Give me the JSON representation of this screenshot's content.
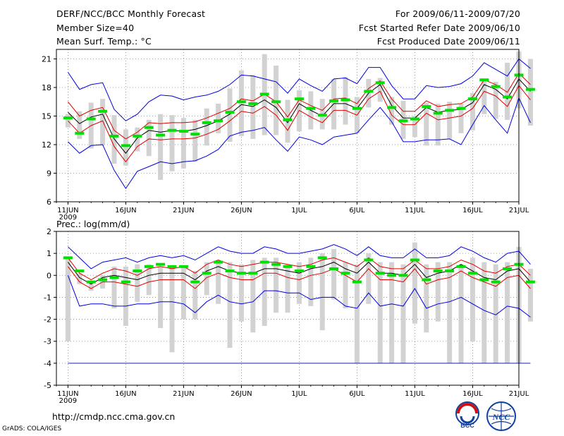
{
  "header": {
    "title": "DERF/NCC/BCC Monthly Forecast",
    "member": "Member Size=40",
    "variable": "Mean Surf. Temp.: °C",
    "period": "For 2009/06/11-2009/07/20",
    "started": "Fcst Started Refer Date 2009/06/10",
    "produced": "Fcst Produced Date 2009/06/11"
  },
  "footer": {
    "url": "http://cmdp.ncc.cma.gov.cn",
    "credit": "GrADS: COLA/IGES"
  },
  "logos": {
    "bcc": "BCC",
    "ncc": "NCC"
  },
  "colors": {
    "bar": "#d2d2d2",
    "median": "#00e000",
    "mean": "#000000",
    "inner": "#e00000",
    "outer": "#0000e0",
    "grid": "#888888"
  },
  "chart_data": [
    {
      "type": "line",
      "panel": "temperature",
      "ylabel": "",
      "ylim": [
        6,
        22
      ],
      "yticks": [
        6,
        9,
        12,
        15,
        18,
        21
      ],
      "xlim": [
        0,
        40
      ],
      "xticks": [
        {
          "x": 1,
          "label": "11JUN",
          "sub": "2009"
        },
        {
          "x": 6,
          "label": "16JUN"
        },
        {
          "x": 11,
          "label": "21JUN"
        },
        {
          "x": 16,
          "label": "26JUN"
        },
        {
          "x": 21,
          "label": "1JUL"
        },
        {
          "x": 26,
          "label": "6JUL"
        },
        {
          "x": 31,
          "label": "11JUL"
        },
        {
          "x": 36,
          "label": "16JUL"
        },
        {
          "x": 40,
          "label": "21JUL"
        }
      ],
      "series": [
        {
          "name": "outer_upper",
          "values": [
            19.6,
            17.8,
            18.3,
            18.5,
            15.7,
            14.5,
            15.2,
            16.5,
            17.2,
            17.1,
            16.7,
            17.0,
            17.2,
            17.6,
            18.3,
            19.3,
            19.2,
            18.9,
            18.6,
            17.4,
            18.9,
            18.2,
            17.6,
            18.9,
            19.0,
            18.4,
            20.1,
            20.1,
            18.2,
            16.8,
            16.8,
            18.2,
            18.0,
            18.1,
            18.4,
            19.2,
            20.6,
            19.9,
            19.2,
            21.0,
            20.0
          ]
        },
        {
          "name": "inner_upper",
          "values": [
            16.5,
            15.0,
            15.6,
            15.9,
            13.5,
            12.6,
            13.3,
            14.3,
            14.2,
            14.3,
            14.3,
            14.4,
            14.8,
            15.3,
            15.8,
            16.8,
            16.6,
            17.3,
            16.5,
            14.9,
            16.7,
            16.1,
            15.6,
            16.8,
            16.9,
            16.3,
            17.9,
            18.7,
            16.8,
            15.5,
            15.5,
            16.6,
            16.0,
            16.2,
            16.3,
            17.0,
            18.8,
            18.3,
            17.5,
            19.5,
            18.3
          ]
        },
        {
          "name": "mean",
          "values": [
            15.4,
            14.2,
            14.9,
            15.2,
            12.6,
            11.1,
            12.7,
            13.5,
            13.3,
            13.5,
            13.4,
            13.6,
            14.0,
            14.5,
            15.2,
            16.2,
            16.0,
            16.7,
            15.9,
            14.3,
            16.3,
            15.6,
            15.0,
            16.3,
            16.3,
            15.8,
            17.4,
            18.3,
            16.1,
            14.8,
            14.8,
            15.9,
            15.4,
            15.6,
            15.7,
            16.4,
            18.3,
            17.8,
            16.8,
            18.9,
            17.6
          ]
        },
        {
          "name": "inner_lower",
          "values": [
            14.5,
            13.2,
            14.0,
            14.5,
            11.8,
            10.2,
            11.8,
            12.6,
            12.5,
            12.6,
            12.6,
            12.7,
            13.1,
            13.6,
            14.5,
            15.5,
            15.3,
            16.0,
            15.1,
            13.5,
            15.6,
            14.9,
            14.3,
            15.6,
            15.6,
            15.1,
            16.8,
            17.6,
            15.1,
            14.1,
            14.1,
            15.3,
            14.6,
            14.8,
            15.0,
            15.8,
            17.6,
            17.1,
            16.0,
            18.2,
            16.7
          ]
        },
        {
          "name": "outer_lower",
          "values": [
            12.3,
            11.1,
            11.9,
            12.0,
            9.3,
            7.4,
            9.2,
            9.7,
            10.2,
            10.0,
            10.2,
            10.3,
            10.8,
            11.5,
            12.9,
            13.3,
            13.5,
            13.8,
            12.5,
            11.3,
            12.8,
            12.5,
            12.0,
            12.8,
            13.0,
            13.2,
            14.6,
            15.9,
            14.4,
            12.3,
            12.3,
            12.5,
            12.5,
            12.6,
            12.0,
            14.1,
            16.1,
            14.6,
            13.2,
            16.9,
            14.3
          ]
        }
      ],
      "boxes": {
        "low": [
          13.8,
          12.6,
          11.6,
          11.9,
          10.0,
          9.8,
          11.3,
          10.8,
          8.3,
          9.2,
          9.5,
          10.2,
          11.9,
          13.2,
          12.3,
          12.9,
          12.6,
          13.0,
          13.0,
          12.2,
          13.4,
          13.6,
          13.6,
          13.6,
          14.1,
          13.2,
          15.9,
          16.5,
          14.1,
          12.6,
          12.8,
          11.9,
          11.9,
          12.6,
          13.2,
          13.5,
          15.2,
          14.7,
          14.6,
          15.8,
          14.0
        ],
        "high": [
          15.2,
          15.5,
          16.4,
          16.8,
          15.1,
          13.6,
          13.8,
          14.6,
          15.2,
          15.1,
          14.8,
          14.6,
          15.8,
          16.3,
          17.9,
          19.8,
          19.3,
          21.5,
          20.3,
          16.7,
          17.7,
          17.6,
          16.8,
          18.9,
          19.1,
          17.0,
          18.9,
          19.0,
          17.0,
          16.6,
          15.0,
          16.4,
          16.3,
          16.5,
          16.3,
          17.4,
          18.7,
          18.6,
          20.6,
          21.8,
          21.0
        ]
      },
      "medians": [
        14.8,
        13.2,
        14.7,
        15.5,
        12.9,
        11.9,
        12.9,
        13.8,
        13.0,
        13.5,
        13.4,
        13.1,
        14.3,
        14.5,
        15.4,
        16.5,
        16.3,
        17.3,
        16.5,
        14.6,
        16.8,
        15.8,
        15.1,
        16.6,
        16.7,
        15.8,
        17.6,
        18.5,
        15.9,
        14.5,
        14.7,
        16.0,
        15.3,
        15.6,
        15.8,
        16.8,
        18.8,
        18.1,
        17.0,
        19.3,
        17.8
      ]
    },
    {
      "type": "line",
      "panel": "precipitation",
      "ylabel": "Prec.: log(mm/d)",
      "ylim": [
        -5,
        2
      ],
      "yticks": [
        -5,
        -4,
        -3,
        -2,
        -1,
        0,
        1,
        2
      ],
      "xlim": [
        0,
        40
      ],
      "xticks": [
        {
          "x": 1,
          "label": "11JUN",
          "sub": "2009"
        },
        {
          "x": 6,
          "label": "16JUN"
        },
        {
          "x": 11,
          "label": "21JUN"
        },
        {
          "x": 16,
          "label": "26JUN"
        },
        {
          "x": 21,
          "label": "1JUL"
        },
        {
          "x": 26,
          "label": "6JUL"
        },
        {
          "x": 31,
          "label": "11JUL"
        },
        {
          "x": 36,
          "label": "16JUL"
        },
        {
          "x": 40,
          "label": "21JUL"
        }
      ],
      "series": [
        {
          "name": "outer_upper",
          "values": [
            1.3,
            0.8,
            0.3,
            0.6,
            0.7,
            0.8,
            0.6,
            0.8,
            0.9,
            0.8,
            0.9,
            0.7,
            1.0,
            1.3,
            1.1,
            1.0,
            1.0,
            1.3,
            1.2,
            1.0,
            1.0,
            1.1,
            1.2,
            1.4,
            1.2,
            0.9,
            1.3,
            0.9,
            0.8,
            0.8,
            1.2,
            0.8,
            0.8,
            0.9,
            1.3,
            1.1,
            0.8,
            0.6,
            1.0,
            1.1,
            0.5
          ]
        },
        {
          "name": "inner_upper",
          "values": [
            0.8,
            0.1,
            -0.2,
            0.1,
            0.3,
            0.2,
            0.0,
            0.3,
            0.4,
            0.3,
            0.4,
            0.1,
            0.5,
            0.7,
            0.5,
            0.4,
            0.5,
            0.6,
            0.6,
            0.5,
            0.4,
            0.5,
            0.7,
            0.8,
            0.6,
            0.4,
            0.8,
            0.4,
            0.3,
            0.3,
            0.7,
            0.3,
            0.3,
            0.4,
            0.7,
            0.5,
            0.2,
            0.1,
            0.4,
            0.5,
            0.0
          ]
        },
        {
          "name": "mean",
          "values": [
            0.6,
            -0.1,
            -0.4,
            -0.1,
            0.0,
            -0.1,
            -0.2,
            0.0,
            0.1,
            0.1,
            0.1,
            -0.2,
            0.2,
            0.4,
            0.2,
            0.1,
            0.1,
            0.3,
            0.3,
            0.2,
            0.1,
            0.3,
            0.4,
            0.6,
            0.3,
            0.1,
            0.6,
            0.1,
            0.1,
            0.0,
            0.5,
            -0.1,
            0.1,
            0.2,
            0.5,
            0.2,
            -0.1,
            -0.2,
            0.2,
            0.3,
            -0.3
          ]
        },
        {
          "name": "inner_lower",
          "values": [
            0.4,
            -0.3,
            -0.6,
            -0.3,
            -0.3,
            -0.4,
            -0.5,
            -0.3,
            -0.2,
            -0.2,
            -0.2,
            -0.6,
            -0.1,
            0.1,
            -0.1,
            -0.2,
            -0.2,
            0.1,
            0.1,
            -0.1,
            -0.2,
            0.0,
            0.1,
            0.3,
            0.0,
            -0.3,
            0.3,
            -0.2,
            -0.2,
            -0.3,
            0.3,
            -0.4,
            -0.2,
            -0.1,
            0.2,
            -0.1,
            -0.3,
            -0.5,
            -0.1,
            0.0,
            -0.6
          ]
        },
        {
          "name": "outer_lower",
          "values": [
            0.0,
            -1.4,
            -1.3,
            -1.3,
            -1.4,
            -1.4,
            -1.3,
            -1.3,
            -1.2,
            -1.2,
            -1.3,
            -1.7,
            -1.2,
            -0.9,
            -1.2,
            -1.3,
            -1.2,
            -0.7,
            -0.7,
            -0.8,
            -0.8,
            -1.1,
            -1.0,
            -1.0,
            -1.4,
            -1.5,
            -0.8,
            -1.4,
            -1.3,
            -1.4,
            -0.6,
            -1.5,
            -1.3,
            -1.2,
            -1.0,
            -1.3,
            -1.6,
            -1.8,
            -1.4,
            -1.5,
            -1.9
          ]
        },
        {
          "name": "floor",
          "values": [
            -4.0,
            -4.0,
            -4.0,
            -4.0,
            -4.0,
            -4.0,
            -4.0,
            -4.0,
            -4.0,
            -4.0,
            -4.0,
            -4.0,
            -4.0,
            -4.0,
            -4.0,
            -4.0,
            -4.0,
            -4.0,
            -4.0,
            -4.0,
            -4.0,
            -4.0,
            -4.0,
            -4.0,
            -4.0,
            -4.0,
            -4.0,
            -4.0,
            -4.0,
            -4.0,
            -4.0,
            -4.0,
            -4.0,
            -4.0,
            -4.0,
            -4.0,
            -4.0,
            -4.0,
            -4.0,
            -4.0,
            -4.0
          ]
        }
      ],
      "boxes": {
        "low": [
          -3.0,
          -0.4,
          -0.7,
          -0.6,
          -1.5,
          -2.3,
          -1.2,
          -0.9,
          -2.4,
          -3.5,
          -2.0,
          -2.0,
          -0.9,
          -1.3,
          -3.3,
          -2.1,
          -2.6,
          -2.3,
          -1.7,
          -1.7,
          -1.3,
          -1.4,
          -2.5,
          -1.1,
          -1.5,
          -4.0,
          -1.3,
          -4.0,
          -4.0,
          -4.0,
          -2.2,
          -2.6,
          -2.1,
          -4.0,
          -4.0,
          -3.0,
          -4.0,
          -4.0,
          -4.0,
          -4.0,
          -2.1
        ],
        "high": [
          0.8,
          0.1,
          -0.3,
          0.0,
          0.4,
          0.4,
          0.5,
          0.5,
          0.4,
          0.4,
          0.4,
          0.2,
          0.6,
          0.7,
          0.6,
          0.5,
          0.7,
          0.8,
          0.8,
          0.5,
          0.6,
          0.8,
          1.0,
          1.2,
          0.6,
          0.5,
          1.0,
          0.6,
          0.6,
          0.5,
          1.5,
          0.5,
          0.6,
          0.6,
          0.5,
          0.8,
          0.6,
          0.5,
          0.6,
          1.3,
          0.3
        ]
      },
      "medians": [
        0.8,
        0.2,
        -0.3,
        -0.2,
        -0.1,
        -0.3,
        0.2,
        0.4,
        0.5,
        0.4,
        0.4,
        -0.3,
        0.1,
        0.6,
        0.2,
        0.1,
        0.1,
        0.6,
        0.5,
        0.4,
        0.2,
        0.4,
        0.8,
        0.3,
        0.1,
        -0.3,
        0.7,
        0.1,
        0.0,
        0.0,
        0.7,
        -0.2,
        0.2,
        0.2,
        0.4,
        0.1,
        -0.2,
        -0.3,
        0.3,
        0.5,
        -0.3
      ]
    }
  ]
}
